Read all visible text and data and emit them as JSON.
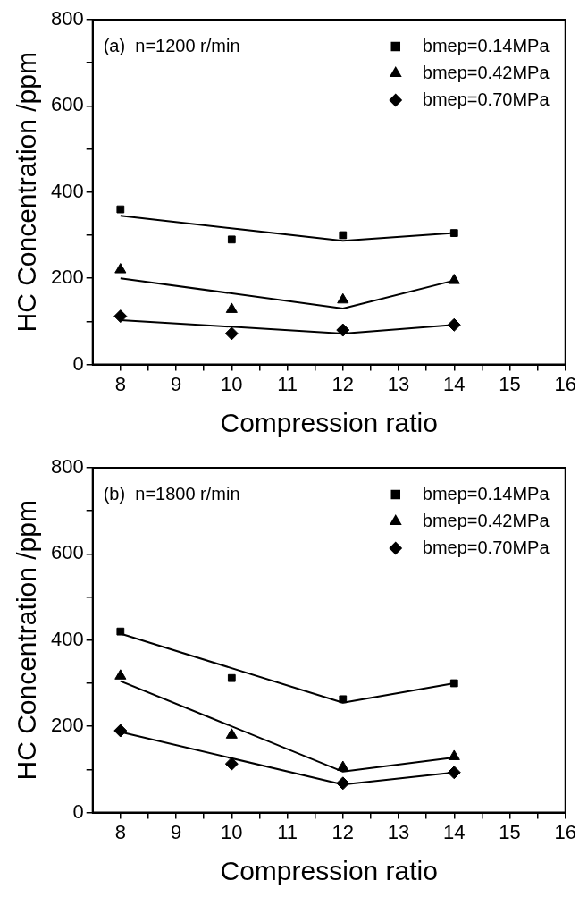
{
  "chart_data": [
    {
      "type": "scatter",
      "annotations": [
        "(a)  n=1200 r/min"
      ],
      "xlabel": "Compression ratio",
      "ylabel": "HC Concentration /ppm",
      "legend": "top right",
      "grid": false,
      "xlim": [
        7.5,
        16
      ],
      "xticks": [
        8,
        {
          "value": 8.5,
          "label": null
        },
        9,
        {
          "value": 9.5,
          "label": null
        },
        10,
        {
          "value": 10.5,
          "label": null
        },
        11,
        {
          "value": 11.5,
          "label": null
        },
        12,
        {
          "value": 12.5,
          "label": null
        },
        13,
        {
          "value": 13.5,
          "label": null
        },
        14,
        {
          "value": 14.5,
          "label": null
        },
        15,
        {
          "value": 15.5,
          "label": null
        },
        16
      ],
      "ylim": [
        0,
        800
      ],
      "yticks": [
        0,
        {
          "value": 100,
          "label": null
        },
        200,
        {
          "value": 300,
          "label": null
        },
        400,
        {
          "value": 500,
          "label": null
        },
        600,
        {
          "value": 700,
          "label": null
        },
        800
      ],
      "series": [
        {
          "name": "bmep=0.14MPa",
          "color": "#000000",
          "marker": "square",
          "x": [
            8,
            10,
            12,
            14
          ],
          "values": [
            360,
            290,
            300,
            305
          ]
        },
        {
          "name": "bmep=0.42MPa",
          "color": "#000000",
          "marker": "triangle",
          "x": [
            8,
            10,
            12,
            14
          ],
          "values": [
            220,
            128,
            150,
            195
          ]
        },
        {
          "name": "bmep=0.70MPa",
          "color": "#000000",
          "marker": "diamond",
          "x": [
            8,
            10,
            12,
            14
          ],
          "values": [
            112,
            72,
            80,
            92
          ]
        },
        {
          "type": "line",
          "color": "#000000",
          "marker": "none",
          "x": [
            8,
            12,
            14
          ],
          "values": [
            345,
            287,
            305
          ]
        },
        {
          "type": "line",
          "color": "#000000",
          "marker": "none",
          "x": [
            8,
            12,
            14
          ],
          "values": [
            200,
            130,
            195
          ]
        },
        {
          "type": "line",
          "color": "#000000",
          "marker": "none",
          "x": [
            8,
            12,
            14
          ],
          "values": [
            103,
            72,
            92
          ]
        }
      ]
    },
    {
      "type": "scatter",
      "annotations": [
        "(b)  n=1800 r/min"
      ],
      "xlabel": "Compression ratio",
      "ylabel": "HC Concentration /ppm",
      "legend": "top right",
      "grid": false,
      "xlim": [
        7.5,
        16
      ],
      "xticks": [
        8,
        {
          "value": 8.5,
          "label": null
        },
        9,
        {
          "value": 9.5,
          "label": null
        },
        10,
        {
          "value": 10.5,
          "label": null
        },
        11,
        {
          "value": 11.5,
          "label": null
        },
        12,
        {
          "value": 12.5,
          "label": null
        },
        13,
        {
          "value": 13.5,
          "label": null
        },
        14,
        {
          "value": 14.5,
          "label": null
        },
        15,
        {
          "value": 15.5,
          "label": null
        },
        16
      ],
      "ylim": [
        0,
        800
      ],
      "yticks": [
        0,
        {
          "value": 100,
          "label": null
        },
        200,
        {
          "value": 300,
          "label": null
        },
        400,
        {
          "value": 500,
          "label": null
        },
        600,
        {
          "value": 700,
          "label": null
        },
        800
      ],
      "series": [
        {
          "name": "bmep=0.14MPa",
          "color": "#000000",
          "marker": "square",
          "x": [
            8,
            10,
            12,
            14
          ],
          "values": [
            420,
            312,
            263,
            300
          ]
        },
        {
          "name": "bmep=0.42MPa",
          "color": "#000000",
          "marker": "triangle",
          "x": [
            8,
            10,
            12,
            14
          ],
          "values": [
            317,
            180,
            105,
            130
          ]
        },
        {
          "name": "bmep=0.70MPa",
          "color": "#000000",
          "marker": "diamond",
          "x": [
            8,
            10,
            12,
            14
          ],
          "values": [
            190,
            113,
            68,
            93
          ]
        },
        {
          "type": "line",
          "color": "#000000",
          "marker": "none",
          "x": [
            8,
            12,
            14
          ],
          "values": [
            415,
            255,
            300
          ]
        },
        {
          "type": "line",
          "color": "#000000",
          "marker": "none",
          "x": [
            8,
            12,
            14
          ],
          "values": [
            305,
            95,
            128
          ]
        },
        {
          "type": "line",
          "color": "#000000",
          "marker": "none",
          "x": [
            8,
            12,
            14
          ],
          "values": [
            187,
            65,
            93
          ]
        }
      ]
    }
  ]
}
